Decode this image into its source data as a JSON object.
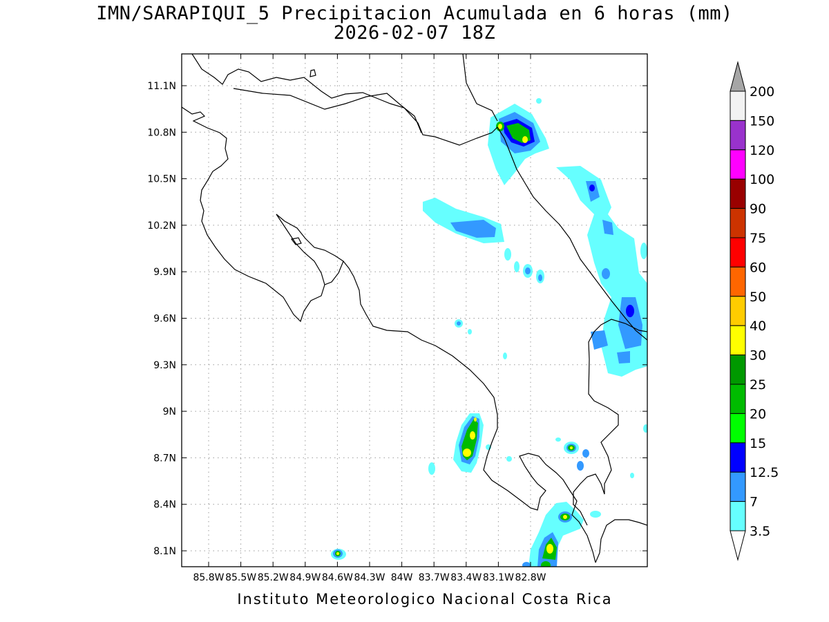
{
  "title": {
    "line1": "IMN/SARAPIQUI_5 Precipitacion Acumulada en 6 horas (mm)",
    "line2": "2026-02-07 18Z"
  },
  "credit": "Instituto Meteorologico Nacional Costa Rica",
  "map": {
    "lon_labels": [
      "85.8W",
      "85.5W",
      "85.2W",
      "84.9W",
      "84.6W",
      "84.3W",
      "84W",
      "83.7W",
      "83.4W",
      "83.1W",
      "82.8W"
    ],
    "lat_labels": [
      "11.1N",
      "10.8N",
      "10.5N",
      "10.2N",
      "9.9N",
      "9.6N",
      "9.3N",
      "9N",
      "8.7N",
      "8.4N",
      "8.1N"
    ],
    "grid": true
  },
  "colorbar": {
    "labels": [
      "200",
      "150",
      "120",
      "100",
      "90",
      "75",
      "60",
      "50",
      "40",
      "30",
      "25",
      "20",
      "15",
      "12.5",
      "7",
      "3.5"
    ],
    "colors": [
      "#f2f2f2",
      "#9932cc",
      "#ff00ff",
      "#990000",
      "#cc3300",
      "#ff0000",
      "#ff6600",
      "#ffcc00",
      "#ffff00",
      "#009900",
      "#00bb00",
      "#00ff00",
      "#0000ff",
      "#3399ff",
      "#66ffff"
    ],
    "over_color": "#a6a6a6",
    "under_color": "#ffffff"
  }
}
